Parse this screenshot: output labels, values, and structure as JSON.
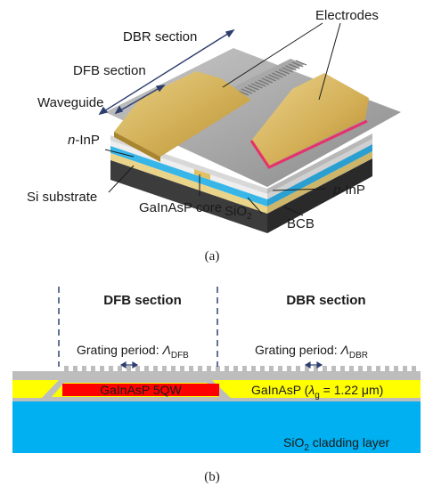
{
  "top": {
    "labels": {
      "electrodes": "Electrodes",
      "dbr_section": "DBR section",
      "dfb_section": "DFB section",
      "waveguide": "Waveguide",
      "n_prefix": "n",
      "n_suffix": "-InP",
      "si_substrate": "Si substrate",
      "core": "GaInAsP core",
      "sio2_main": "SiO",
      "sio2_sub": "2",
      "bcb": "BCB",
      "p_prefix": "p",
      "p_suffix": "-InP"
    },
    "caption": "(a)"
  },
  "bottom": {
    "dfb_title": "DFB section",
    "dbr_title": "DBR section",
    "grating_dfb_text": "Grating period: ",
    "grating_dfb_sym": "Λ",
    "grating_dfb_sub": "DFB",
    "grating_dbr_text": "Grating period: ",
    "grating_dbr_sym": "Λ",
    "grating_dbr_sub": "DBR",
    "qw_label": "GaInAsP 5QW",
    "gainasp_text": "GaInAsP (",
    "lambda_sym": "λ",
    "lambda_sub": "g",
    "lambda_value": " = 1.22 μm)",
    "cladding_main": "SiO",
    "cladding_sub": "2",
    "cladding_rest": " cladding layer",
    "caption": "(b)",
    "colors": {
      "gray": "#bdbdbd",
      "yellow": "#ffff00",
      "red": "#ff0000",
      "blue": "#00b0f0"
    }
  }
}
